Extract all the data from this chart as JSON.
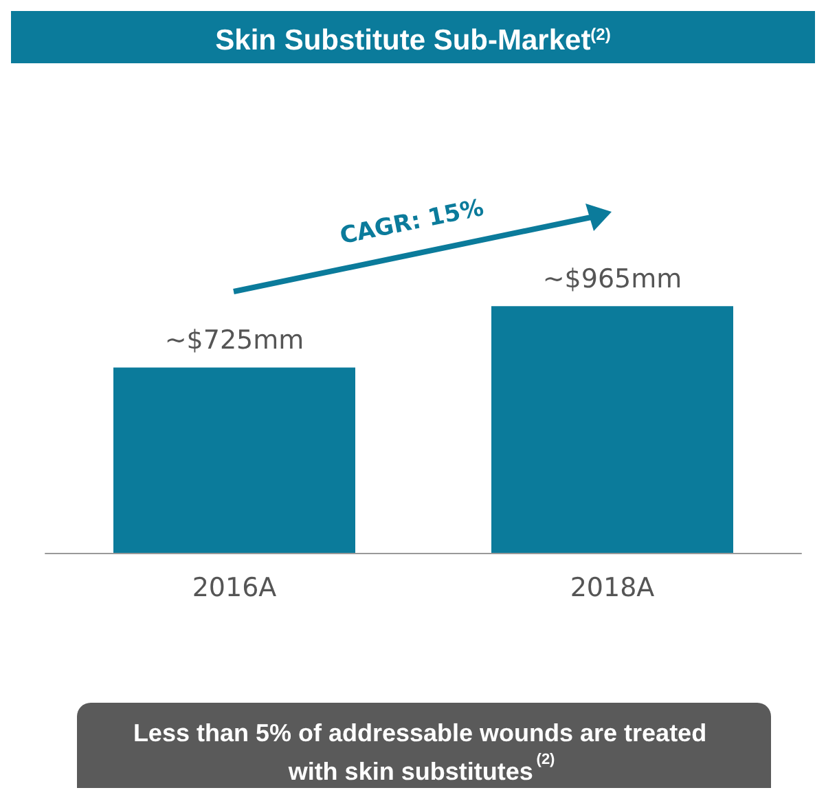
{
  "chart_data": {
    "type": "bar",
    "title": "Skin Substitute Sub-Market$^{(2)}$",
    "categories": [
      "2016A",
      "2018A"
    ],
    "values": [
      725,
      965
    ],
    "value_labels": [
      "~$725mm",
      "~$965mm"
    ],
    "color": "#0b7b9b",
    "annotations": [
      "CAGR: 15%",
      "Less than 5% of addressable wounds are treated with skin substitutes$^{(2)}$"
    ]
  }
}
